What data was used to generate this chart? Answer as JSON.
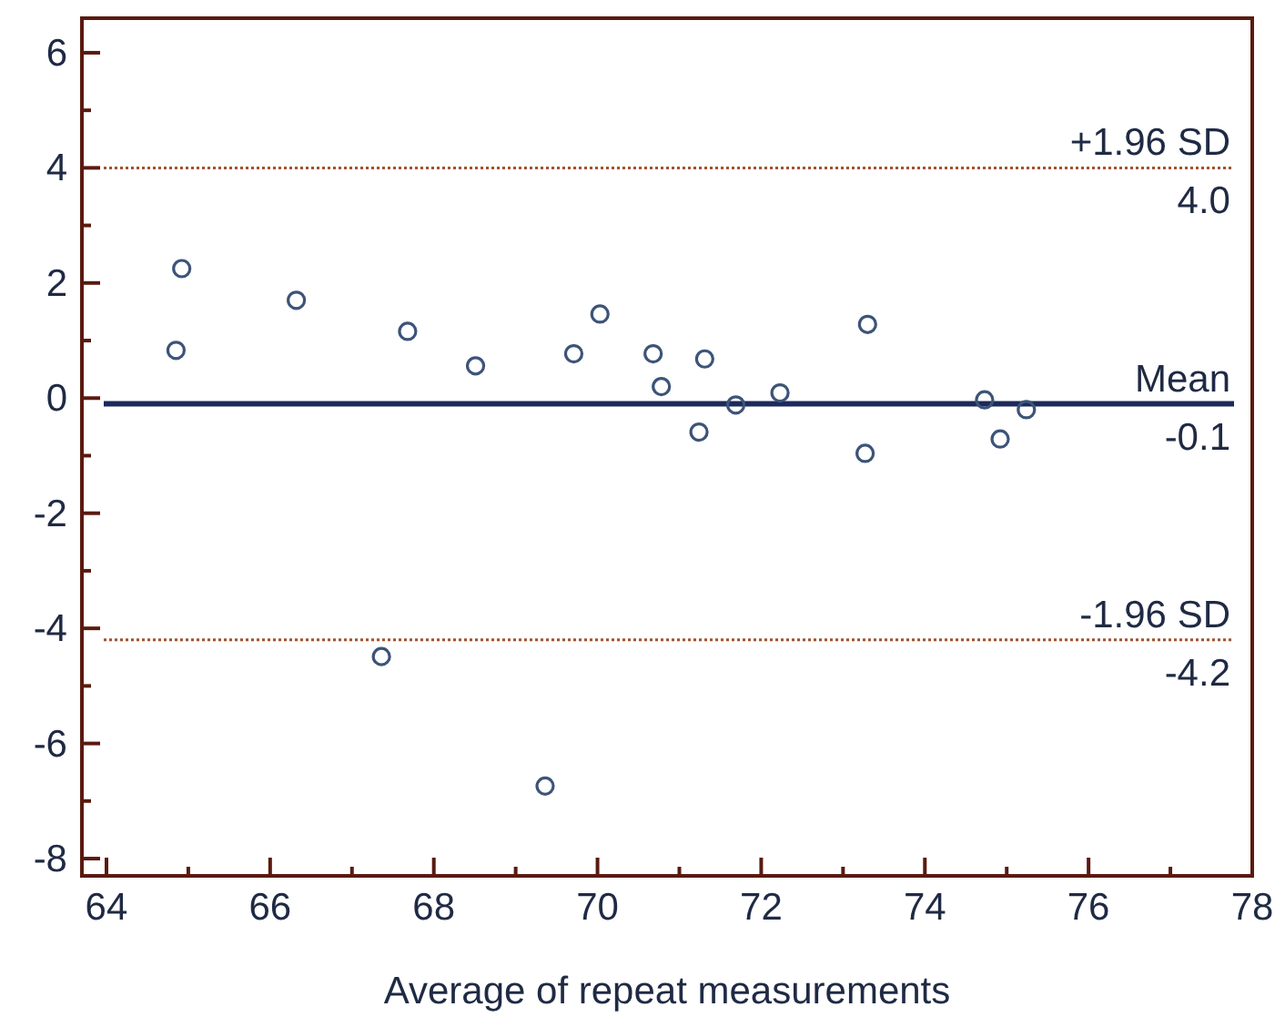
{
  "chart_data": {
    "type": "scatter",
    "xlabel": "Average of repeat measurements",
    "x": [
      64.92,
      64.85,
      66.32,
      67.68,
      68.51,
      69.71,
      70.03,
      70.68,
      70.78,
      71.31,
      71.24,
      71.69,
      72.23,
      73.3,
      73.27,
      74.73,
      74.92,
      75.24,
      67.36,
      69.36
    ],
    "series": [
      {
        "color": "#3d5478",
        "values": [
          2.25,
          0.83,
          1.7,
          1.16,
          0.56,
          0.77,
          1.46,
          0.77,
          0.2,
          0.68,
          -0.59,
          -0.12,
          0.09,
          1.28,
          -0.96,
          -0.03,
          -0.71,
          -0.2,
          -4.49,
          -6.74
        ]
      }
    ],
    "xlim": [
      63.7,
      78
    ],
    "xticks": [
      64,
      {
        "value": 65,
        "label": null
      },
      66,
      {
        "value": 67,
        "label": null
      },
      68,
      {
        "value": 69,
        "label": null
      },
      70,
      {
        "value": 71,
        "label": null
      },
      72,
      {
        "value": 73,
        "label": null
      },
      74,
      {
        "value": 75,
        "label": null
      },
      76,
      {
        "value": 77,
        "label": null
      },
      78
    ],
    "ylim": [
      -8.3,
      6.6
    ],
    "yticks": [
      -8,
      {
        "value": -7,
        "label": null
      },
      -6,
      {
        "value": -5,
        "label": null
      },
      -4,
      {
        "value": -3,
        "label": null
      },
      -2,
      {
        "value": -1,
        "label": null
      },
      0,
      {
        "value": 1,
        "label": null
      },
      2,
      {
        "value": 3,
        "label": null
      },
      4,
      {
        "value": 5,
        "label": null
      },
      6
    ],
    "marker": "circle",
    "grid": false,
    "ref_lines": [
      {
        "axis": "y",
        "value": 4.0,
        "label": "+1.96 SD",
        "color": "#a0522d",
        "line_style": "dotted"
      },
      {
        "axis": "y",
        "value": -0.1,
        "label": "Mean",
        "color": "#1c2a5c",
        "line_style": "solid"
      },
      {
        "axis": "y",
        "value": -4.2,
        "label": "-1.96 SD",
        "color": "#a0522d",
        "line_style": "dotted"
      }
    ],
    "annotations": [
      {
        "text": "4.0",
        "y": 4.0
      },
      {
        "text": "-0.1",
        "y": -0.1
      },
      {
        "text": "-4.2",
        "y": -4.2
      }
    ]
  }
}
